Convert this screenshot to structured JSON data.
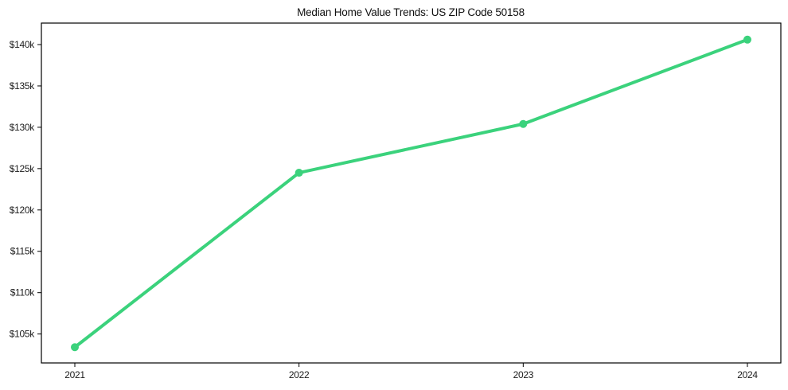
{
  "chart_data": {
    "type": "line",
    "title": "Median Home Value Trends: US ZIP Code 50158",
    "x": [
      "2021",
      "2022",
      "2023",
      "2024"
    ],
    "values": [
      103400,
      124500,
      130400,
      140600
    ],
    "yticks": [
      {
        "value": 105000,
        "label": "$105k"
      },
      {
        "value": 110000,
        "label": "$110k"
      },
      {
        "value": 115000,
        "label": "$115k"
      },
      {
        "value": 120000,
        "label": "$120k"
      },
      {
        "value": 125000,
        "label": "$125k"
      },
      {
        "value": 130000,
        "label": "$130k"
      },
      {
        "value": 135000,
        "label": "$135k"
      },
      {
        "value": 140000,
        "label": "$140k"
      }
    ],
    "ylim": [
      101500,
      142600
    ],
    "xlabel": "",
    "ylabel": "",
    "grid": false,
    "legend": false,
    "marker": "circle",
    "line_color": "#3bd27c",
    "axis_color": "#000000",
    "text_color": "#1c1c1c",
    "background_color": "#ffffff"
  }
}
